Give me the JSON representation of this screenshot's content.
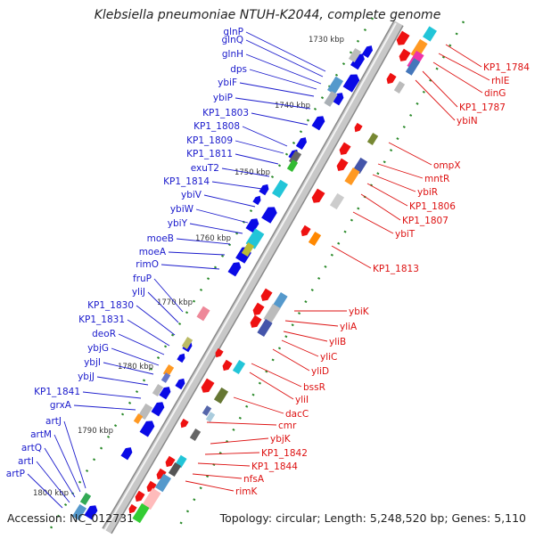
{
  "title": "Klebsiella pneumoniae NTUH-K2044, complete genome",
  "footer": {
    "accession": "Accession: NC_012731",
    "summary": "Topology: circular; Length: 5,248,520 bp; Genes: 5,110"
  },
  "colors": {
    "left_labels": "#1a1acc",
    "right_labels": "#dd1111",
    "ruler_dots": "#2a8a2a",
    "backbone": "#c8c8c8"
  },
  "kbp_ticks": [
    "1730 kbp",
    "1740 kbp",
    "1750 kbp",
    "1760 kbp",
    "1770 kbp",
    "1780 kbp",
    "1790 kbp",
    "1800 kbp"
  ],
  "left_genes": [
    "glnP",
    "glnQ",
    "glnH",
    "dps",
    "ybiF",
    "ybiP",
    "KP1_1803",
    "KP1_1808",
    "KP1_1809",
    "KP1_1811",
    "exuT2",
    "KP1_1814",
    "ybiV",
    "ybiW",
    "ybiY",
    "moeB",
    "moeA",
    "rimO",
    "fruP",
    "yliJ",
    "KP1_1830",
    "KP1_1831",
    "deoR",
    "ybjG",
    "ybjI",
    "ybjJ",
    "KP1_1841",
    "grxA",
    "artJ",
    "artM",
    "artQ",
    "artI",
    "artP"
  ],
  "right_genes": [
    "KP1_1784",
    "rhlE",
    "dinG",
    "KP1_1787",
    "ybiN",
    "ompX",
    "mntR",
    "ybiR",
    "KP1_1806",
    "KP1_1807",
    "ybiT",
    "KP1_1813",
    "ybiK",
    "yliA",
    "yliB",
    "yliC",
    "yliD",
    "bssR",
    "yliI",
    "dacC",
    "cmr",
    "ybjK",
    "KP1_1842",
    "KP1_1844",
    "nfsA",
    "rimK"
  ]
}
